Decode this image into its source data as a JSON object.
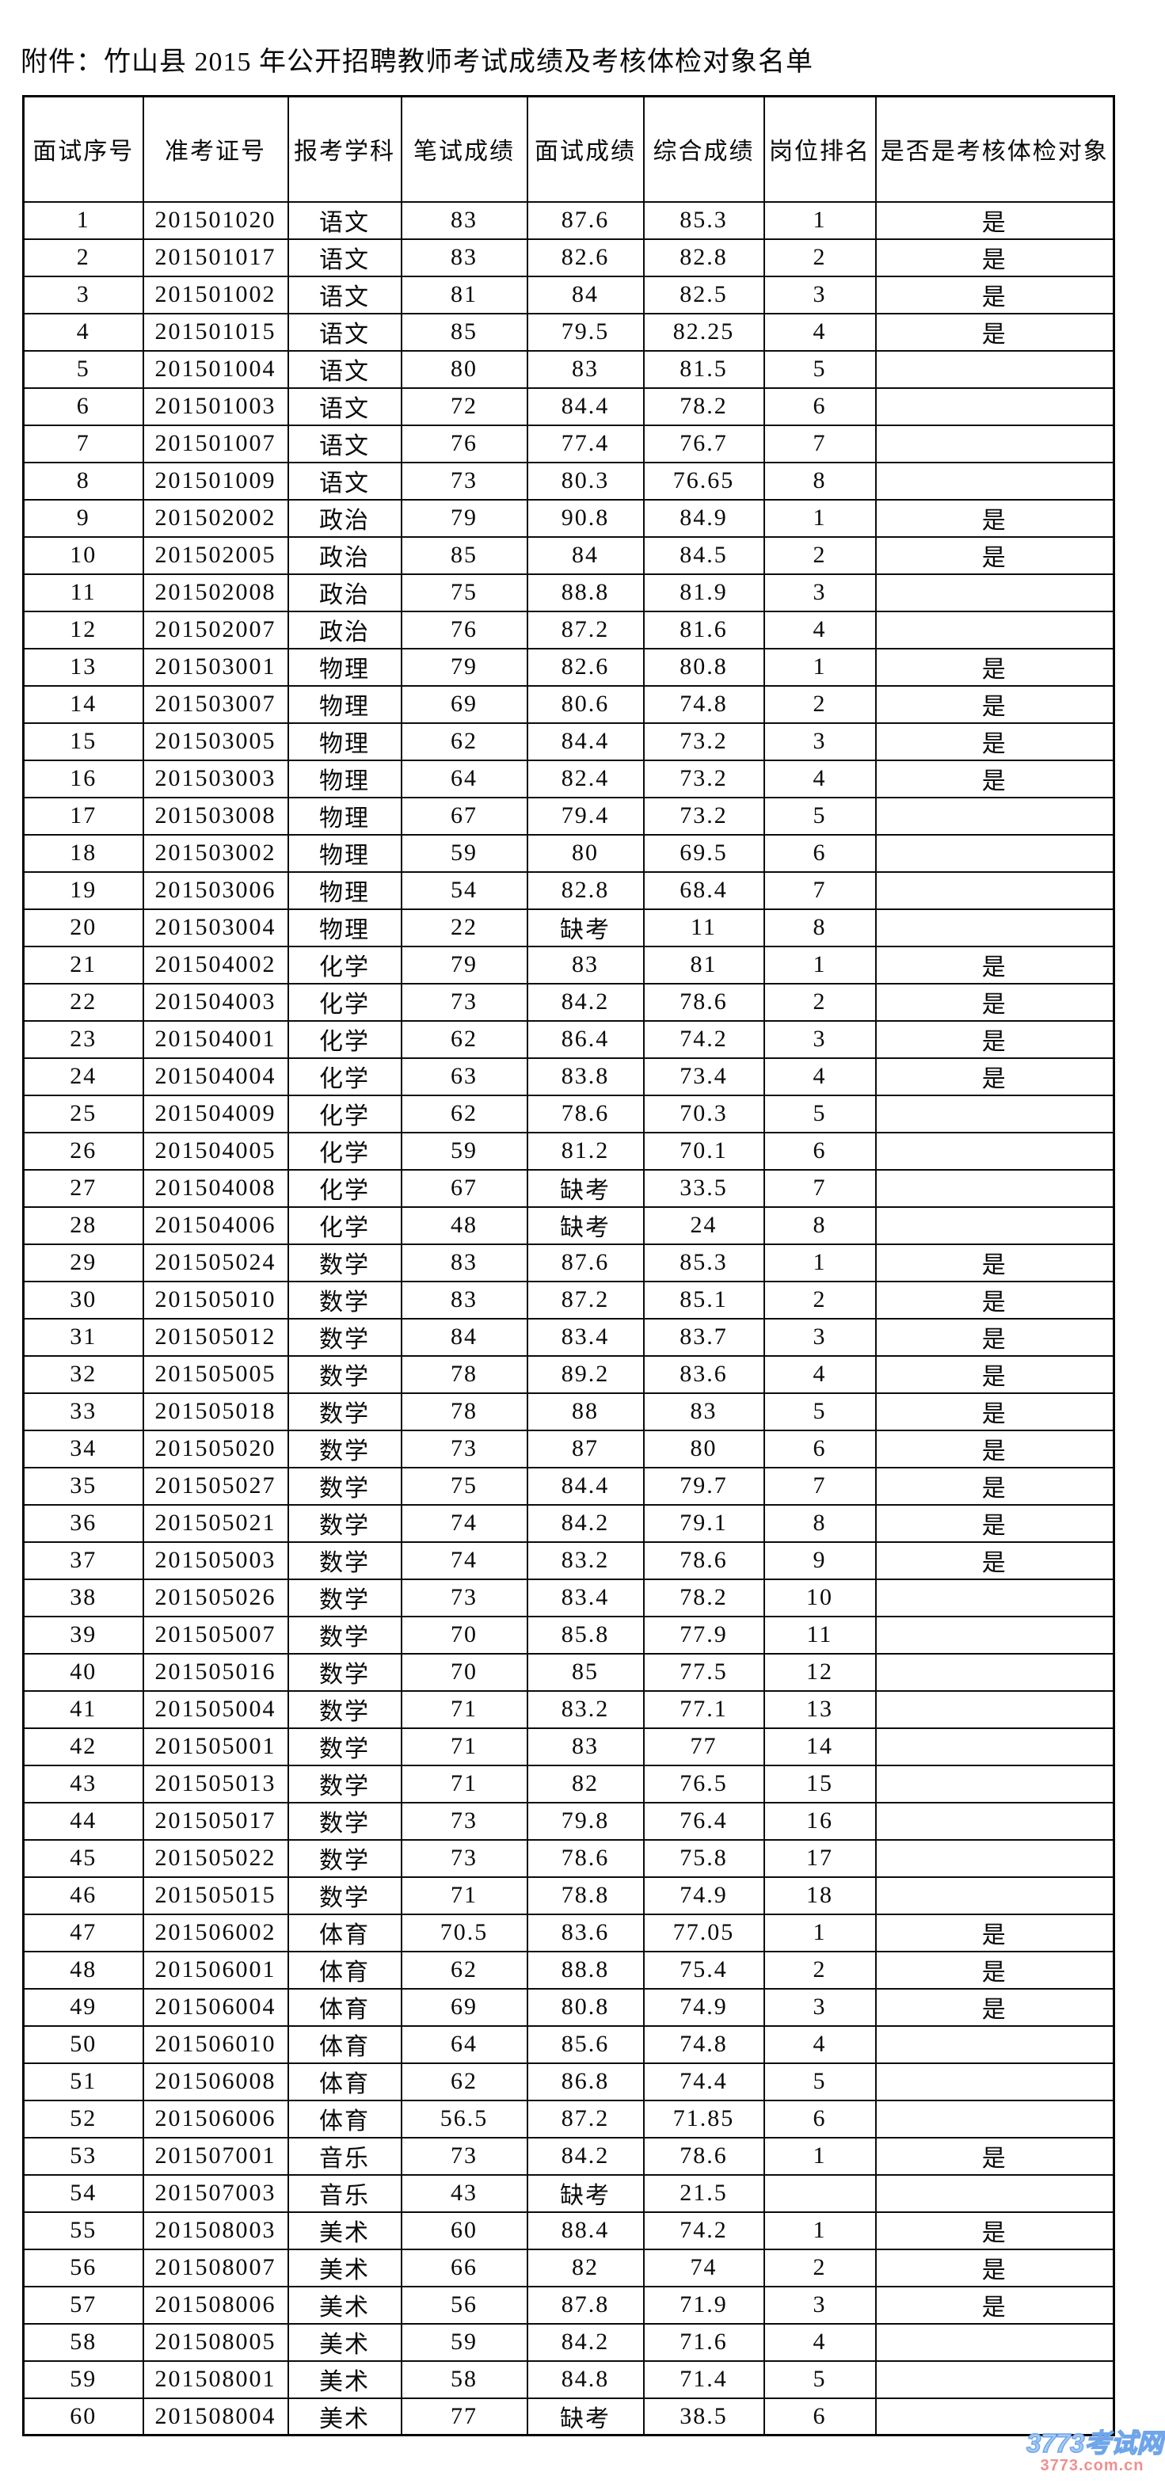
{
  "page": {
    "title": "附件：竹山县 2015 年公开招聘教师考试成绩及考核体检对象名单"
  },
  "table": {
    "headers": [
      "面试序号",
      "准考证号",
      "报考学科",
      "笔试成绩",
      "面试成绩",
      "综合成绩",
      "岗位排名",
      "是否是考核体检对象"
    ],
    "rows": [
      [
        "1",
        "201501020",
        "语文",
        "83",
        "87.6",
        "85.3",
        "1",
        "是"
      ],
      [
        "2",
        "201501017",
        "语文",
        "83",
        "82.6",
        "82.8",
        "2",
        "是"
      ],
      [
        "3",
        "201501002",
        "语文",
        "81",
        "84",
        "82.5",
        "3",
        "是"
      ],
      [
        "4",
        "201501015",
        "语文",
        "85",
        "79.5",
        "82.25",
        "4",
        "是"
      ],
      [
        "5",
        "201501004",
        "语文",
        "80",
        "83",
        "81.5",
        "5",
        ""
      ],
      [
        "6",
        "201501003",
        "语文",
        "72",
        "84.4",
        "78.2",
        "6",
        ""
      ],
      [
        "7",
        "201501007",
        "语文",
        "76",
        "77.4",
        "76.7",
        "7",
        ""
      ],
      [
        "8",
        "201501009",
        "语文",
        "73",
        "80.3",
        "76.65",
        "8",
        ""
      ],
      [
        "9",
        "201502002",
        "政治",
        "79",
        "90.8",
        "84.9",
        "1",
        "是"
      ],
      [
        "10",
        "201502005",
        "政治",
        "85",
        "84",
        "84.5",
        "2",
        "是"
      ],
      [
        "11",
        "201502008",
        "政治",
        "75",
        "88.8",
        "81.9",
        "3",
        ""
      ],
      [
        "12",
        "201502007",
        "政治",
        "76",
        "87.2",
        "81.6",
        "4",
        ""
      ],
      [
        "13",
        "201503001",
        "物理",
        "79",
        "82.6",
        "80.8",
        "1",
        "是"
      ],
      [
        "14",
        "201503007",
        "物理",
        "69",
        "80.6",
        "74.8",
        "2",
        "是"
      ],
      [
        "15",
        "201503005",
        "物理",
        "62",
        "84.4",
        "73.2",
        "3",
        "是"
      ],
      [
        "16",
        "201503003",
        "物理",
        "64",
        "82.4",
        "73.2",
        "4",
        "是"
      ],
      [
        "17",
        "201503008",
        "物理",
        "67",
        "79.4",
        "73.2",
        "5",
        ""
      ],
      [
        "18",
        "201503002",
        "物理",
        "59",
        "80",
        "69.5",
        "6",
        ""
      ],
      [
        "19",
        "201503006",
        "物理",
        "54",
        "82.8",
        "68.4",
        "7",
        ""
      ],
      [
        "20",
        "201503004",
        "物理",
        "22",
        "缺考",
        "11",
        "8",
        ""
      ],
      [
        "21",
        "201504002",
        "化学",
        "79",
        "83",
        "81",
        "1",
        "是"
      ],
      [
        "22",
        "201504003",
        "化学",
        "73",
        "84.2",
        "78.6",
        "2",
        "是"
      ],
      [
        "23",
        "201504001",
        "化学",
        "62",
        "86.4",
        "74.2",
        "3",
        "是"
      ],
      [
        "24",
        "201504004",
        "化学",
        "63",
        "83.8",
        "73.4",
        "4",
        "是"
      ],
      [
        "25",
        "201504009",
        "化学",
        "62",
        "78.6",
        "70.3",
        "5",
        ""
      ],
      [
        "26",
        "201504005",
        "化学",
        "59",
        "81.2",
        "70.1",
        "6",
        ""
      ],
      [
        "27",
        "201504008",
        "化学",
        "67",
        "缺考",
        "33.5",
        "7",
        ""
      ],
      [
        "28",
        "201504006",
        "化学",
        "48",
        "缺考",
        "24",
        "8",
        ""
      ],
      [
        "29",
        "201505024",
        "数学",
        "83",
        "87.6",
        "85.3",
        "1",
        "是"
      ],
      [
        "30",
        "201505010",
        "数学",
        "83",
        "87.2",
        "85.1",
        "2",
        "是"
      ],
      [
        "31",
        "201505012",
        "数学",
        "84",
        "83.4",
        "83.7",
        "3",
        "是"
      ],
      [
        "32",
        "201505005",
        "数学",
        "78",
        "89.2",
        "83.6",
        "4",
        "是"
      ],
      [
        "33",
        "201505018",
        "数学",
        "78",
        "88",
        "83",
        "5",
        "是"
      ],
      [
        "34",
        "201505020",
        "数学",
        "73",
        "87",
        "80",
        "6",
        "是"
      ],
      [
        "35",
        "201505027",
        "数学",
        "75",
        "84.4",
        "79.7",
        "7",
        "是"
      ],
      [
        "36",
        "201505021",
        "数学",
        "74",
        "84.2",
        "79.1",
        "8",
        "是"
      ],
      [
        "37",
        "201505003",
        "数学",
        "74",
        "83.2",
        "78.6",
        "9",
        "是"
      ],
      [
        "38",
        "201505026",
        "数学",
        "73",
        "83.4",
        "78.2",
        "10",
        ""
      ],
      [
        "39",
        "201505007",
        "数学",
        "70",
        "85.8",
        "77.9",
        "11",
        ""
      ],
      [
        "40",
        "201505016",
        "数学",
        "70",
        "85",
        "77.5",
        "12",
        ""
      ],
      [
        "41",
        "201505004",
        "数学",
        "71",
        "83.2",
        "77.1",
        "13",
        ""
      ],
      [
        "42",
        "201505001",
        "数学",
        "71",
        "83",
        "77",
        "14",
        ""
      ],
      [
        "43",
        "201505013",
        "数学",
        "71",
        "82",
        "76.5",
        "15",
        ""
      ],
      [
        "44",
        "201505017",
        "数学",
        "73",
        "79.8",
        "76.4",
        "16",
        ""
      ],
      [
        "45",
        "201505022",
        "数学",
        "73",
        "78.6",
        "75.8",
        "17",
        ""
      ],
      [
        "46",
        "201505015",
        "数学",
        "71",
        "78.8",
        "74.9",
        "18",
        ""
      ],
      [
        "47",
        "201506002",
        "体育",
        "70.5",
        "83.6",
        "77.05",
        "1",
        "是"
      ],
      [
        "48",
        "201506001",
        "体育",
        "62",
        "88.8",
        "75.4",
        "2",
        "是"
      ],
      [
        "49",
        "201506004",
        "体育",
        "69",
        "80.8",
        "74.9",
        "3",
        "是"
      ],
      [
        "50",
        "201506010",
        "体育",
        "64",
        "85.6",
        "74.8",
        "4",
        ""
      ],
      [
        "51",
        "201506008",
        "体育",
        "62",
        "86.8",
        "74.4",
        "5",
        ""
      ],
      [
        "52",
        "201506006",
        "体育",
        "56.5",
        "87.2",
        "71.85",
        "6",
        ""
      ],
      [
        "53",
        "201507001",
        "音乐",
        "73",
        "84.2",
        "78.6",
        "1",
        "是"
      ],
      [
        "54",
        "201507003",
        "音乐",
        "43",
        "缺考",
        "21.5",
        "",
        ""
      ],
      [
        "55",
        "201508003",
        "美术",
        "60",
        "88.4",
        "74.2",
        "1",
        "是"
      ],
      [
        "56",
        "201508007",
        "美术",
        "66",
        "82",
        "74",
        "2",
        "是"
      ],
      [
        "57",
        "201508006",
        "美术",
        "56",
        "87.8",
        "71.9",
        "3",
        "是"
      ],
      [
        "58",
        "201508005",
        "美术",
        "59",
        "84.2",
        "71.6",
        "4",
        ""
      ],
      [
        "59",
        "201508001",
        "美术",
        "58",
        "84.8",
        "71.4",
        "5",
        ""
      ],
      [
        "60",
        "201508004",
        "美术",
        "77",
        "缺考",
        "38.5",
        "6",
        ""
      ]
    ]
  },
  "watermark": {
    "site_name": "3773考试网",
    "site_url": "3773.com.cn",
    "name_color": "#6fa5e9",
    "url_color": "#ef8f8f"
  }
}
